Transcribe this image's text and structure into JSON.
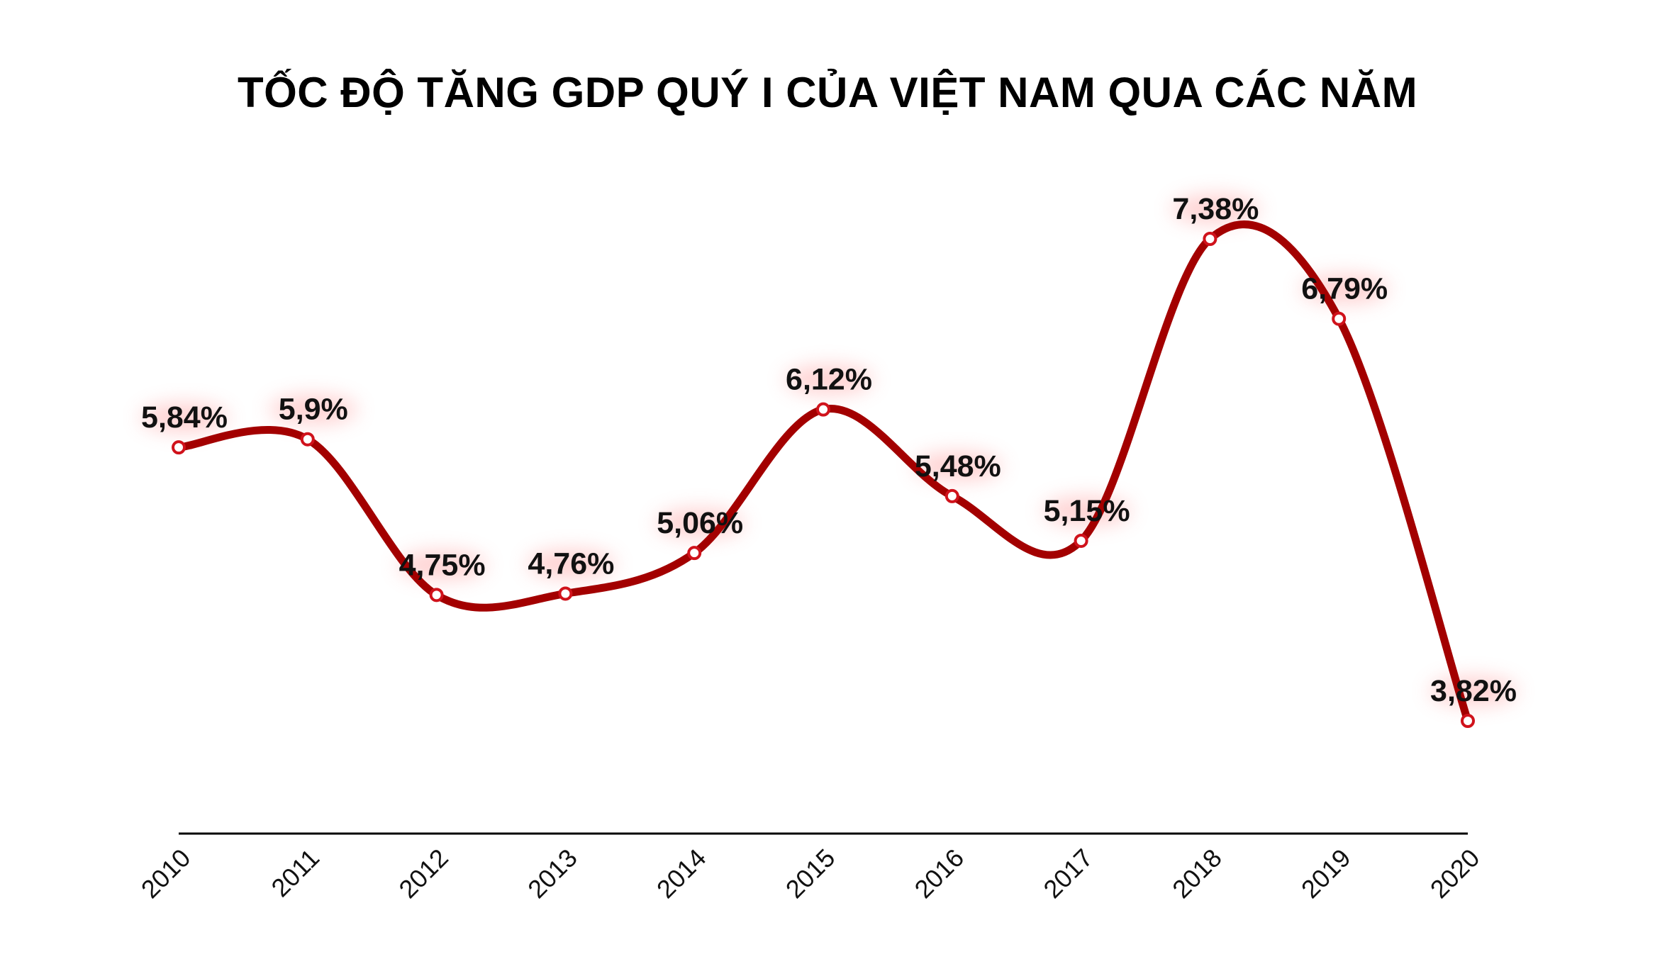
{
  "chart_data": {
    "type": "line",
    "title": "TỐC ĐỘ TĂNG GDP QUÝ I CỦA VIỆT NAM QUA CÁC NĂM",
    "xlabel": "",
    "ylabel": "",
    "categories": [
      "2010",
      "2011",
      "2012",
      "2013",
      "2014",
      "2015",
      "2016",
      "2017",
      "2018",
      "2019",
      "2020"
    ],
    "values": [
      5.84,
      5.9,
      4.75,
      4.76,
      5.06,
      6.12,
      5.48,
      5.15,
      7.38,
      6.79,
      3.82
    ],
    "data_labels": [
      "5,84%",
      "5,9%",
      "4,75%",
      "4,76%",
      "5,06%",
      "6,12%",
      "5,48%",
      "5,15%",
      "7,38%",
      "6,79%",
      "3,82%"
    ],
    "ylim": [
      3.0,
      8.0
    ],
    "grid": false,
    "smooth": true,
    "colors": {
      "line": "#a30000",
      "marker_fill": "#ffffff",
      "marker_stroke": "#d0121b",
      "label_glow": "#ff9a9a",
      "axis": "#000000"
    }
  }
}
